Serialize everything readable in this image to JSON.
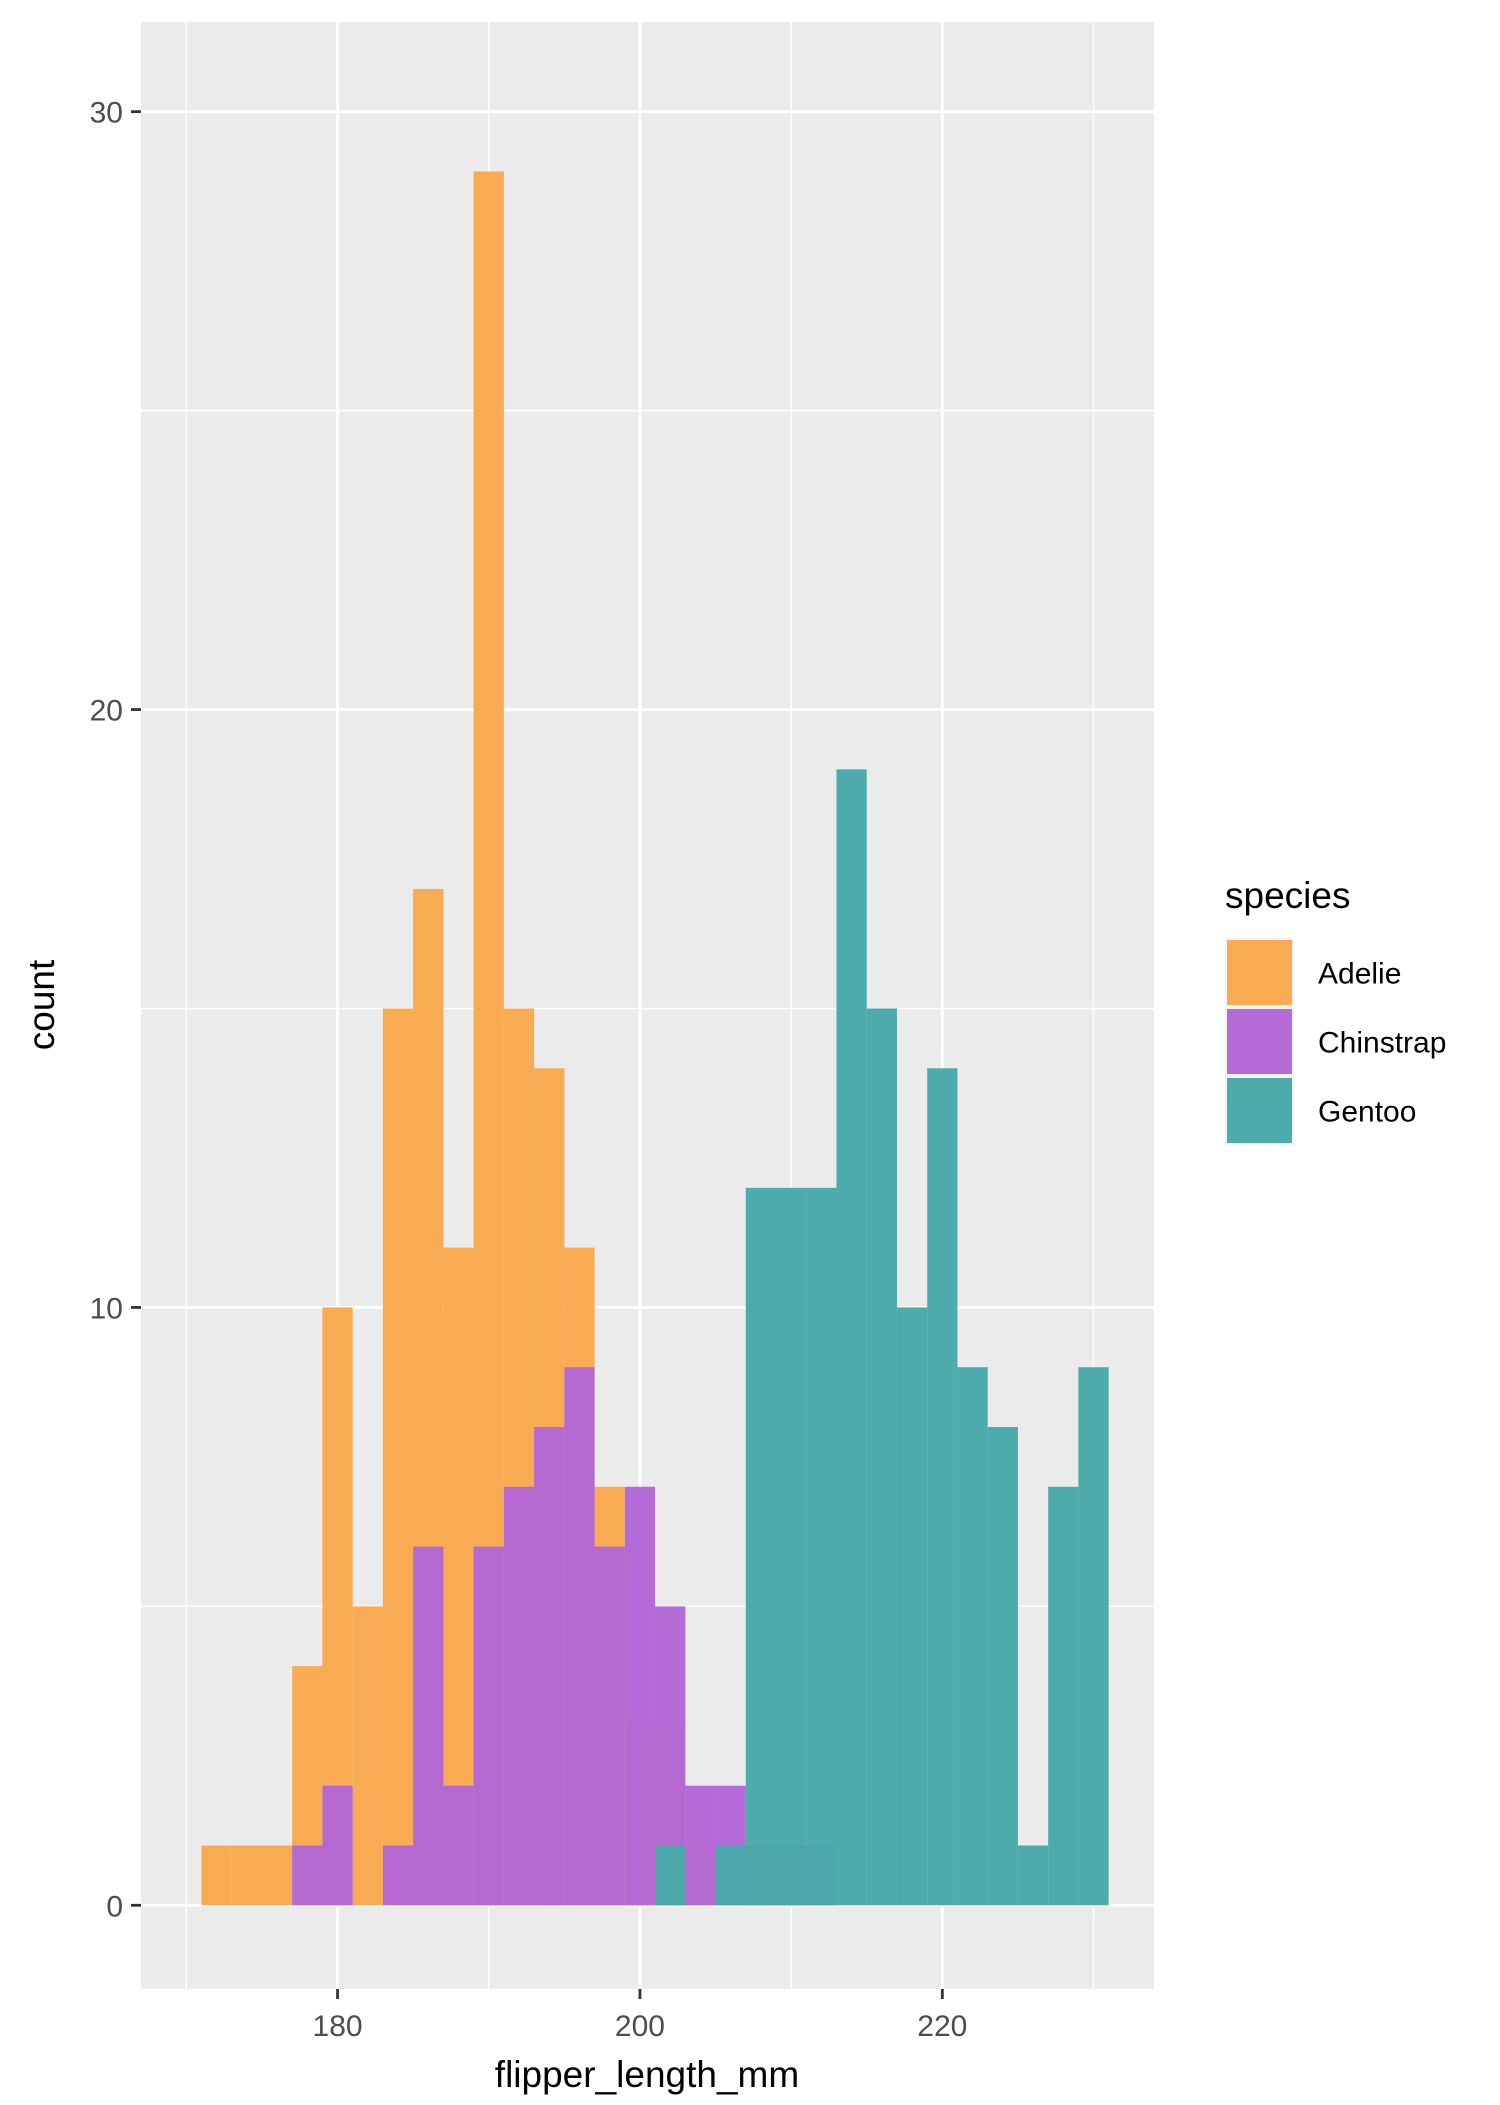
{
  "chart_data": {
    "type": "bar",
    "title": "",
    "xlabel": "flipper_length_mm",
    "ylabel": "count",
    "xlim": [
      167,
      234
    ],
    "ylim": [
      -1.4,
      31.5
    ],
    "xticks": [
      180,
      200,
      220
    ],
    "yticks": [
      0,
      10,
      20,
      30
    ],
    "grid": true,
    "legend": {
      "title": "species",
      "position": "right"
    },
    "bin_width": 2,
    "series": [
      {
        "name": "Adelie",
        "color": "#F8A84C",
        "bins": [
          {
            "x0": 171,
            "x1": 173,
            "count": 1
          },
          {
            "x0": 173,
            "x1": 175,
            "count": 1
          },
          {
            "x0": 175,
            "x1": 177,
            "count": 1
          },
          {
            "x0": 177,
            "x1": 179,
            "count": 4
          },
          {
            "x0": 179,
            "x1": 181,
            "count": 10
          },
          {
            "x0": 181,
            "x1": 183,
            "count": 5
          },
          {
            "x0": 183,
            "x1": 185,
            "count": 15
          },
          {
            "x0": 185,
            "x1": 187,
            "count": 17
          },
          {
            "x0": 187,
            "x1": 189,
            "count": 11
          },
          {
            "x0": 189,
            "x1": 191,
            "count": 29
          },
          {
            "x0": 191,
            "x1": 193,
            "count": 15
          },
          {
            "x0": 193,
            "x1": 195,
            "count": 14
          },
          {
            "x0": 195,
            "x1": 197,
            "count": 11
          },
          {
            "x0": 197,
            "x1": 199,
            "count": 7
          },
          {
            "x0": 199,
            "x1": 201,
            "count": 3
          },
          {
            "x0": 201,
            "x1": 203,
            "count": 3
          },
          {
            "x0": 203,
            "x1": 205,
            "count": 1
          },
          {
            "x0": 207,
            "x1": 209,
            "count": 1
          },
          {
            "x0": 209,
            "x1": 211,
            "count": 1
          }
        ]
      },
      {
        "name": "Chinstrap",
        "color": "#B165D5",
        "bins": [
          {
            "x0": 177,
            "x1": 179,
            "count": 1
          },
          {
            "x0": 179,
            "x1": 181,
            "count": 2
          },
          {
            "x0": 181,
            "x1": 183,
            "count": 0
          },
          {
            "x0": 183,
            "x1": 185,
            "count": 1
          },
          {
            "x0": 185,
            "x1": 187,
            "count": 6
          },
          {
            "x0": 187,
            "x1": 189,
            "count": 2
          },
          {
            "x0": 189,
            "x1": 191,
            "count": 6
          },
          {
            "x0": 191,
            "x1": 193,
            "count": 7
          },
          {
            "x0": 193,
            "x1": 195,
            "count": 8
          },
          {
            "x0": 195,
            "x1": 197,
            "count": 9
          },
          {
            "x0": 197,
            "x1": 199,
            "count": 6
          },
          {
            "x0": 199,
            "x1": 201,
            "count": 7
          },
          {
            "x0": 201,
            "x1": 203,
            "count": 5
          },
          {
            "x0": 203,
            "x1": 205,
            "count": 2
          },
          {
            "x0": 205,
            "x1": 207,
            "count": 2
          },
          {
            "x0": 207,
            "x1": 209,
            "count": 1
          },
          {
            "x0": 209,
            "x1": 211,
            "count": 1
          },
          {
            "x0": 211,
            "x1": 213,
            "count": 1
          }
        ]
      },
      {
        "name": "Gentoo",
        "color": "#47A8A8",
        "bins": [
          {
            "x0": 201,
            "x1": 203,
            "count": 1
          },
          {
            "x0": 205,
            "x1": 207,
            "count": 1
          },
          {
            "x0": 207,
            "x1": 209,
            "count": 12
          },
          {
            "x0": 209,
            "x1": 211,
            "count": 12
          },
          {
            "x0": 211,
            "x1": 213,
            "count": 12
          },
          {
            "x0": 213,
            "x1": 215,
            "count": 19
          },
          {
            "x0": 215,
            "x1": 217,
            "count": 15
          },
          {
            "x0": 217,
            "x1": 219,
            "count": 10
          },
          {
            "x0": 219,
            "x1": 221,
            "count": 14
          },
          {
            "x0": 221,
            "x1": 223,
            "count": 9
          },
          {
            "x0": 223,
            "x1": 225,
            "count": 8
          },
          {
            "x0": 225,
            "x1": 227,
            "count": 1
          },
          {
            "x0": 227,
            "x1": 229,
            "count": 7
          },
          {
            "x0": 229,
            "x1": 231,
            "count": 9
          }
        ]
      }
    ]
  }
}
